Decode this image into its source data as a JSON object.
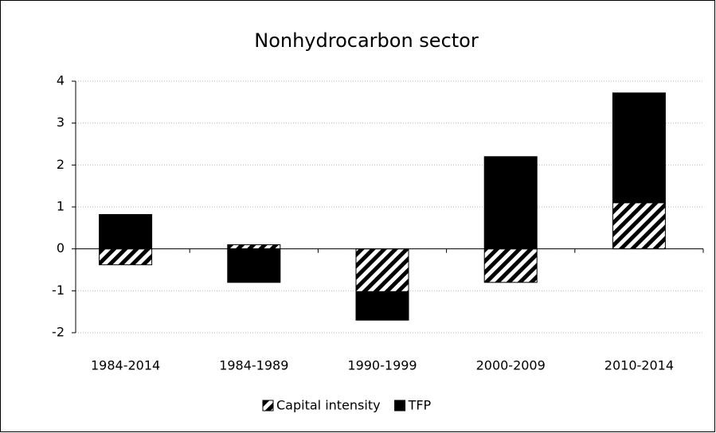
{
  "chart_data": {
    "type": "stacked-bar",
    "title": "Nonhydrocarbon sector",
    "categories": [
      "1984-2014",
      "1984-1989",
      "1990-1999",
      "2000-2009",
      "2010-2014"
    ],
    "series": [
      {
        "name": "Capital intensity",
        "color": "#000000",
        "pattern": "diagonal-hatch",
        "values": [
          -0.38,
          0.1,
          -1.02,
          -0.8,
          1.1
        ]
      },
      {
        "name": "TFP",
        "color": "#000000",
        "values": [
          0.82,
          -0.8,
          -0.68,
          2.2,
          2.62
        ]
      }
    ],
    "ylim": [
      -2,
      4
    ],
    "yticks": [
      -2,
      -1,
      0,
      1,
      2,
      3,
      4
    ],
    "grid": true,
    "legend": "bottom"
  }
}
